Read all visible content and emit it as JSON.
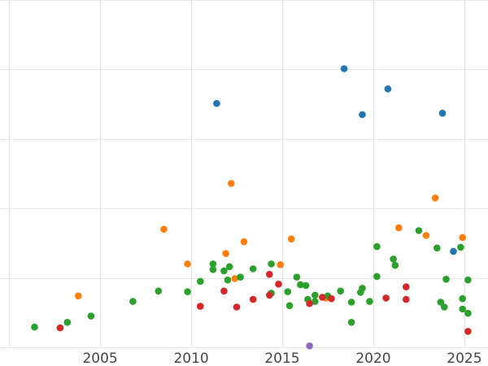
{
  "chart_data": {
    "type": "scatter",
    "title": "",
    "xlabel": "",
    "ylabel": "",
    "xlim": [
      1999.5,
      2026.3
    ],
    "ylim": [
      0,
      5
    ],
    "x_ticks": [
      2005,
      2010,
      2015,
      2020,
      2025
    ],
    "x_tick_labels": [
      "2005",
      "2010",
      "2015",
      "2020",
      "2025"
    ],
    "y_grid": [
      0,
      1,
      2,
      3,
      4,
      5
    ],
    "x_grid": [
      2000,
      2005,
      2010,
      2015,
      2020,
      2025
    ],
    "grid": true,
    "legend": false,
    "series": [
      {
        "color": "#1f77b4",
        "points": [
          [
            2011.4,
            3.51
          ],
          [
            2018.4,
            4.01
          ],
          [
            2019.4,
            3.35
          ],
          [
            2020.8,
            3.72
          ],
          [
            2023.8,
            3.37
          ],
          [
            2024.4,
            1.38
          ]
        ]
      },
      {
        "color": "#ff7f0e",
        "points": [
          [
            2003.8,
            0.74
          ],
          [
            2008.5,
            1.7
          ],
          [
            2009.8,
            1.2
          ],
          [
            2011.9,
            1.35
          ],
          [
            2012.2,
            2.36
          ],
          [
            2012.4,
            0.99
          ],
          [
            2012.9,
            1.52
          ],
          [
            2014.9,
            1.19
          ],
          [
            2015.5,
            1.56
          ],
          [
            2017.4,
            0.71
          ],
          [
            2021.4,
            1.72
          ],
          [
            2022.9,
            1.61
          ],
          [
            2023.4,
            2.15
          ],
          [
            2024.9,
            1.58
          ]
        ]
      },
      {
        "color": "#2ca02c",
        "points": [
          [
            2001.4,
            0.29
          ],
          [
            2003.2,
            0.36
          ],
          [
            2004.5,
            0.45
          ],
          [
            2006.8,
            0.66
          ],
          [
            2008.2,
            0.81
          ],
          [
            2009.8,
            0.8
          ],
          [
            2010.5,
            0.95
          ],
          [
            2011.2,
            1.12
          ],
          [
            2011.2,
            1.2
          ],
          [
            2011.8,
            1.1
          ],
          [
            2012.0,
            0.97
          ],
          [
            2012.1,
            1.16
          ],
          [
            2012.7,
            1.01
          ],
          [
            2013.4,
            1.13
          ],
          [
            2014.4,
            1.2
          ],
          [
            2014.4,
            0.78
          ],
          [
            2015.3,
            0.8
          ],
          [
            2015.4,
            0.6
          ],
          [
            2015.8,
            1.01
          ],
          [
            2016.0,
            0.9
          ],
          [
            2016.3,
            0.89
          ],
          [
            2016.4,
            0.69
          ],
          [
            2016.8,
            0.75
          ],
          [
            2016.8,
            0.66
          ],
          [
            2017.5,
            0.74
          ],
          [
            2018.2,
            0.81
          ],
          [
            2018.8,
            0.36
          ],
          [
            2018.8,
            0.65
          ],
          [
            2019.3,
            0.79
          ],
          [
            2019.4,
            0.85
          ],
          [
            2019.8,
            0.66
          ],
          [
            2020.2,
            1.02
          ],
          [
            2020.2,
            1.45
          ],
          [
            2021.1,
            1.27
          ],
          [
            2021.2,
            1.18
          ],
          [
            2022.5,
            1.68
          ],
          [
            2023.5,
            1.43
          ],
          [
            2023.7,
            0.65
          ],
          [
            2023.9,
            0.58
          ],
          [
            2024.0,
            0.98
          ],
          [
            2024.8,
            1.44
          ],
          [
            2024.9,
            0.55
          ],
          [
            2024.9,
            0.7
          ],
          [
            2025.2,
            0.97
          ],
          [
            2025.2,
            0.49
          ]
        ]
      },
      {
        "color": "#d62728",
        "points": [
          [
            2002.8,
            0.28
          ],
          [
            2010.5,
            0.59
          ],
          [
            2011.8,
            0.81
          ],
          [
            2012.5,
            0.58
          ],
          [
            2013.4,
            0.69
          ],
          [
            2014.3,
            1.05
          ],
          [
            2014.3,
            0.75
          ],
          [
            2014.8,
            0.91
          ],
          [
            2016.5,
            0.63
          ],
          [
            2017.2,
            0.72
          ],
          [
            2017.7,
            0.7
          ],
          [
            2020.7,
            0.71
          ],
          [
            2021.8,
            0.87
          ],
          [
            2021.8,
            0.69
          ],
          [
            2025.2,
            0.23
          ]
        ]
      },
      {
        "color": "#9467bd",
        "points": [
          [
            2016.5,
            0.02
          ]
        ]
      }
    ]
  }
}
